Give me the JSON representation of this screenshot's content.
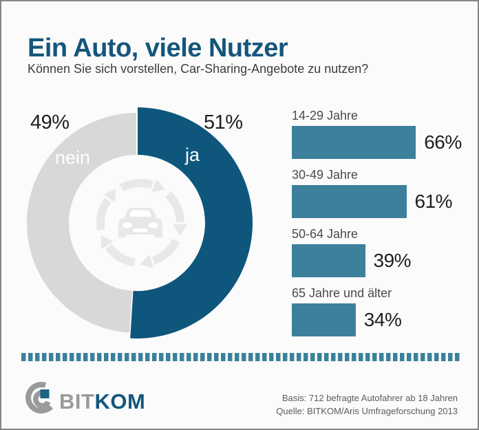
{
  "header": {
    "title": "Ein Auto, viele Nutzer",
    "subtitle": "Können Sie sich vorstellen, Car-Sharing-Angebote zu nutzen?"
  },
  "donut": {
    "left_value": "49%",
    "left_label": "nein",
    "right_value": "51%",
    "right_label": "ja",
    "center_icon": "car-sharing-watermark-icon"
  },
  "bars": {
    "items": [
      {
        "label": "14-29 Jahre",
        "value": 66,
        "value_label": "66%"
      },
      {
        "label": "30-49 Jahre",
        "value": 61,
        "value_label": "61%"
      },
      {
        "label": "50-64 Jahre",
        "value": 39,
        "value_label": "39%"
      },
      {
        "label": "65 Jahre und älter",
        "value": 34,
        "value_label": "34%"
      }
    ]
  },
  "footer": {
    "logo_bit": "BIT",
    "logo_kom": "KOM",
    "basis": "Basis: 712 befragte Autofahrer ab 18 Jahren",
    "quelle": "Quelle: BITKOM/Aris Umfrageforschung 2013"
  },
  "colors": {
    "background": "#FBFBFB",
    "headline_blue": "#14567C",
    "pie_yes_blue": "#0E567C",
    "pie_no_gray": "#D8D8D8",
    "bar_teal": "#3C809C",
    "dash_teal": "#3C809C",
    "logo_gray": "#9A9A9A",
    "logo_square_teal": "#1E6484",
    "watermark_gray": "#E8E8E8"
  },
  "chart_data": [
    {
      "type": "pie",
      "subtype": "donut",
      "title": "Ein Auto, viele Nutzer",
      "question": "Können Sie sich vorstellen, Car-Sharing-Angebote zu nutzen?",
      "labels": [
        "ja",
        "nein"
      ],
      "values": [
        51,
        49
      ],
      "unit": "%",
      "colors": [
        "#0E567C",
        "#D8D8D8"
      ],
      "start_angle": "top",
      "direction": "clockwise",
      "center_icon": "car-sharing-watermark"
    },
    {
      "type": "bar",
      "orientation": "horizontal",
      "categories": [
        "14-29 Jahre",
        "30-49 Jahre",
        "50-64 Jahre",
        "65 Jahre und älter"
      ],
      "values": [
        66,
        61,
        39,
        34
      ],
      "unit": "%",
      "xlim": [
        0,
        100
      ],
      "bar_color": "#3C809C",
      "value_labels": [
        "66%",
        "61%",
        "39%",
        "34%"
      ],
      "footnote": [
        "Basis: 712 befragte Autofahrer ab 18 Jahren",
        "Quelle: BITKOM/Aris Umfrageforschung 2013"
      ]
    }
  ]
}
